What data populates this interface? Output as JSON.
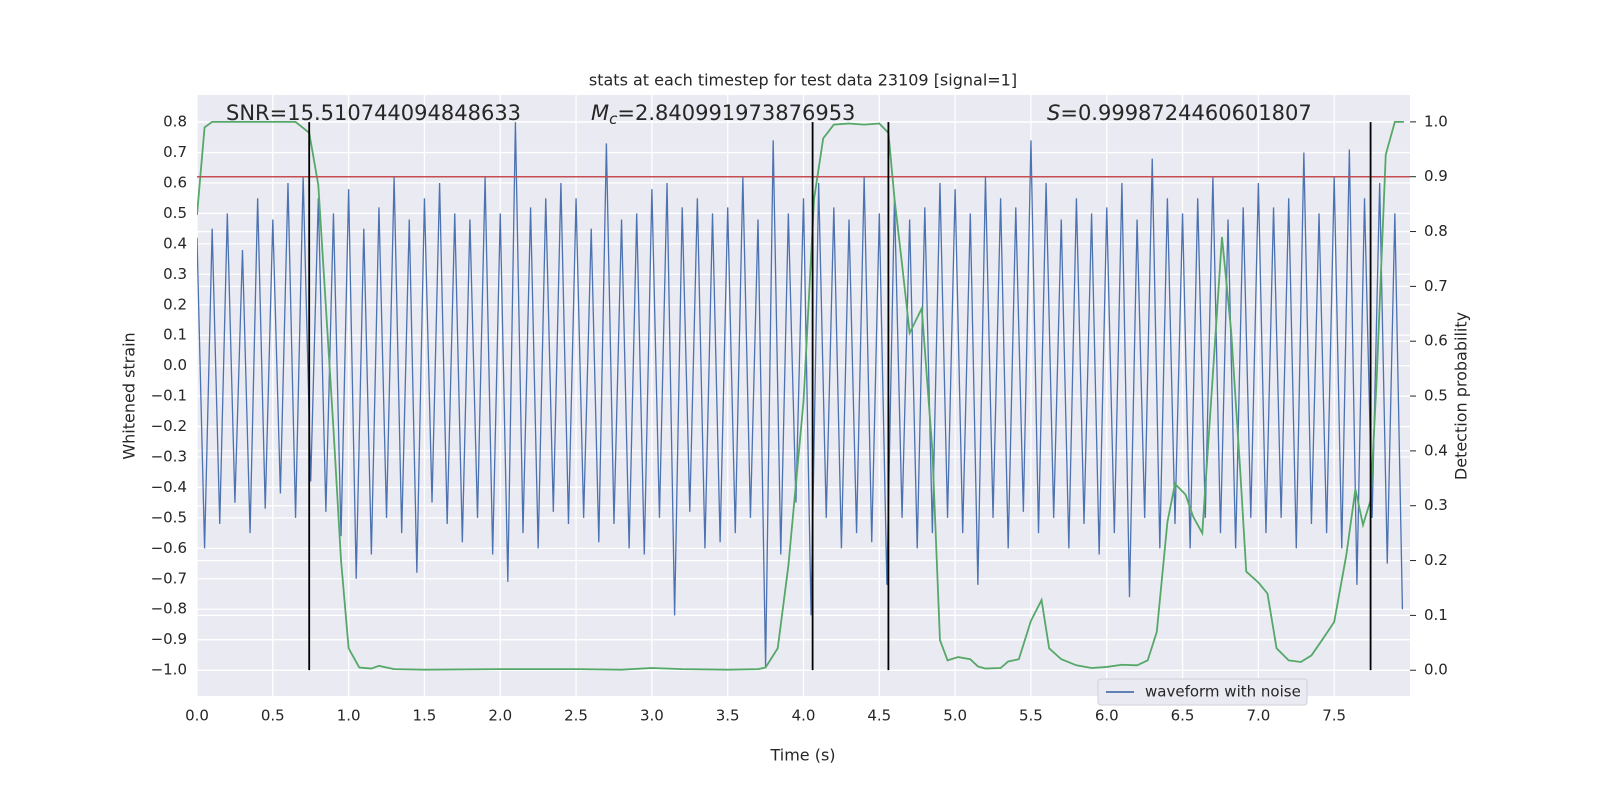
{
  "chart_data": {
    "type": "line",
    "title": "stats at each timestep for test data 23109 [signal=1]",
    "xlabel": "Time (s)",
    "ylabel": "Whitened strain",
    "y2label": "Detection probability",
    "xlim": [
      0,
      8.0
    ],
    "ylim": [
      -1.085,
      0.889
    ],
    "y2lim": [
      -0.047,
      1.049
    ],
    "xticks": [
      {
        "value": 0,
        "label": "0.0"
      },
      0.5,
      {
        "value": 1,
        "label": "1.0"
      },
      1.5,
      {
        "value": 2,
        "label": "2.0"
      },
      2.5,
      {
        "value": 3,
        "label": "3.0"
      },
      3.5,
      {
        "value": 4,
        "label": "4.0"
      },
      4.5,
      {
        "value": 5,
        "label": "5.0"
      },
      5.5,
      {
        "value": 6,
        "label": "6.0"
      },
      6.5,
      {
        "value": 7,
        "label": "7.0"
      },
      7.5
    ],
    "yticks": [
      {
        "value": -1.0,
        "label": "−1.0"
      },
      {
        "value": -0.9,
        "label": "−0.9"
      },
      {
        "value": -0.8,
        "label": "−0.8"
      },
      {
        "value": -0.7,
        "label": "−0.7"
      },
      {
        "value": -0.6,
        "label": "−0.6"
      },
      {
        "value": -0.5,
        "label": "−0.5"
      },
      {
        "value": -0.4,
        "label": "−0.4"
      },
      {
        "value": -0.3,
        "label": "−0.3"
      },
      {
        "value": -0.2,
        "label": "−0.2"
      },
      {
        "value": -0.1,
        "label": "−0.1"
      },
      {
        "value": 0,
        "label": "0.0"
      },
      0.1,
      0.2,
      0.3,
      0.4,
      0.5,
      0.6,
      0.7,
      0.8
    ],
    "y2ticks": [
      {
        "value": 0,
        "label": "0.0"
      },
      0.1,
      0.2,
      0.3,
      0.4,
      0.5,
      0.6,
      0.7,
      0.8,
      0.9,
      {
        "value": 1,
        "label": "1.0"
      }
    ],
    "grid": true,
    "y2grid": true,
    "legend": "lower right",
    "annotations": [
      {
        "text": "SNR=15.510744094848633"
      },
      {
        "symbol": "M",
        "subscript": "c",
        "text": "=2.840991973876953"
      },
      {
        "symbol": "S",
        "text": "=0.9998724460601807"
      }
    ],
    "vlines": {
      "x": [
        0.74,
        4.06,
        4.56,
        7.74
      ],
      "ymin": -1.0,
      "ymax": 0.8,
      "color": "#000000"
    },
    "hline": {
      "axis": "y2",
      "value": 0.9,
      "color": "#c44e52"
    },
    "series": [
      {
        "name": "waveform with noise",
        "color": "#4c72b0",
        "axis": "y",
        "x": [
          0,
          0.05,
          0.1,
          0.15,
          0.2,
          0.25,
          0.3,
          0.35,
          0.4,
          0.45,
          0.5,
          0.55,
          0.6,
          0.65,
          0.7,
          0.75,
          0.8,
          0.85,
          0.9,
          0.95,
          1,
          1.05,
          1.1,
          1.15,
          1.2,
          1.25,
          1.3,
          1.35,
          1.4,
          1.45,
          1.5,
          1.55,
          1.6,
          1.65,
          1.7,
          1.75,
          1.8,
          1.85,
          1.9,
          1.95,
          2,
          2.05,
          2.1,
          2.15,
          2.2,
          2.25,
          2.3,
          2.35,
          2.4,
          2.45,
          2.5,
          2.55,
          2.6,
          2.65,
          2.7,
          2.75,
          2.8,
          2.85,
          2.9,
          2.95,
          3,
          3.05,
          3.1,
          3.15,
          3.2,
          3.25,
          3.3,
          3.35,
          3.4,
          3.45,
          3.5,
          3.55,
          3.6,
          3.65,
          3.7,
          3.75,
          3.8,
          3.85,
          3.9,
          3.95,
          4,
          4.05,
          4.1,
          4.15,
          4.2,
          4.25,
          4.3,
          4.35,
          4.4,
          4.45,
          4.5,
          4.55,
          4.6,
          4.65,
          4.7,
          4.75,
          4.8,
          4.85,
          4.9,
          4.95,
          5,
          5.05,
          5.1,
          5.15,
          5.2,
          5.25,
          5.3,
          5.35,
          5.4,
          5.45,
          5.5,
          5.55,
          5.6,
          5.65,
          5.7,
          5.75,
          5.8,
          5.85,
          5.9,
          5.95,
          6,
          6.05,
          6.1,
          6.15,
          6.2,
          6.25,
          6.3,
          6.35,
          6.4,
          6.45,
          6.5,
          6.55,
          6.6,
          6.65,
          6.7,
          6.75,
          6.8,
          6.85,
          6.9,
          6.95,
          7,
          7.05,
          7.1,
          7.15,
          7.2,
          7.25,
          7.3,
          7.35,
          7.4,
          7.45,
          7.5,
          7.55,
          7.6,
          7.65,
          7.7,
          7.75,
          7.8,
          7.85,
          7.9,
          7.95
        ],
        "values": [
          0.42,
          -0.6,
          0.45,
          -0.52,
          0.5,
          -0.45,
          0.38,
          -0.55,
          0.55,
          -0.47,
          0.48,
          -0.42,
          0.6,
          -0.5,
          0.62,
          -0.38,
          0.55,
          -0.48,
          0.5,
          -0.56,
          0.58,
          -0.7,
          0.45,
          -0.62,
          0.52,
          -0.5,
          0.62,
          -0.55,
          0.48,
          -0.68,
          0.55,
          -0.45,
          0.6,
          -0.52,
          0.5,
          -0.58,
          0.48,
          -0.5,
          0.62,
          -0.62,
          0.5,
          -0.71,
          0.8,
          -0.55,
          0.52,
          -0.6,
          0.55,
          -0.48,
          0.6,
          -0.52,
          0.55,
          -0.5,
          0.45,
          -0.58,
          0.73,
          -0.52,
          0.48,
          -0.6,
          0.5,
          -0.62,
          0.58,
          -0.5,
          0.6,
          -0.82,
          0.52,
          -0.48,
          0.55,
          -0.6,
          0.5,
          -0.58,
          0.52,
          -0.55,
          0.62,
          -0.5,
          0.48,
          -0.99,
          0.74,
          -0.62,
          0.5,
          -0.45,
          0.55,
          -0.82,
          0.6,
          -0.5,
          0.52,
          -0.6,
          0.48,
          -0.55,
          0.62,
          -0.58,
          0.5,
          -0.72,
          0.55,
          -0.5,
          0.48,
          -0.6,
          0.52,
          -0.55,
          0.6,
          -0.5,
          0.58,
          -0.55,
          0.5,
          -0.72,
          0.62,
          -0.5,
          0.55,
          -0.6,
          0.52,
          -0.48,
          0.74,
          -0.55,
          0.6,
          -0.5,
          0.48,
          -0.6,
          0.55,
          -0.52,
          0.5,
          -0.62,
          0.52,
          -0.55,
          0.6,
          -0.76,
          0.48,
          -0.5,
          0.68,
          -0.6,
          0.55,
          -0.52,
          0.5,
          -0.6,
          0.55,
          -0.5,
          0.62,
          -0.55,
          0.48,
          -0.6,
          0.52,
          -0.5,
          0.6,
          -0.55,
          0.52,
          -0.5,
          0.55,
          -0.6,
          0.7,
          -0.52,
          0.5,
          -0.55,
          0.62,
          -0.6,
          0.71,
          -0.72,
          0.55,
          -0.5,
          0.6,
          -0.65,
          0.5,
          -0.8
        ]
      },
      {
        "color": "#55a868",
        "axis": "y2",
        "x": [
          0,
          0.05,
          0.1,
          0.2,
          0.3,
          0.4,
          0.5,
          0.6,
          0.65,
          0.74,
          0.8,
          0.9,
          0.95,
          1.0,
          1.07,
          1.15,
          1.2,
          1.3,
          1.5,
          2.0,
          2.5,
          2.8,
          3.0,
          3.2,
          3.5,
          3.7,
          3.75,
          3.83,
          3.9,
          4.0,
          4.07,
          4.13,
          4.2,
          4.3,
          4.4,
          4.5,
          4.56,
          4.6,
          4.65,
          4.7,
          4.78,
          4.85,
          4.9,
          4.95,
          5.02,
          5.1,
          5.15,
          5.2,
          5.3,
          5.35,
          5.42,
          5.5,
          5.57,
          5.62,
          5.7,
          5.8,
          5.9,
          6.0,
          6.1,
          6.2,
          6.27,
          6.33,
          6.4,
          6.45,
          6.52,
          6.57,
          6.63,
          6.7,
          6.76,
          6.82,
          6.88,
          6.92,
          7.0,
          7.06,
          7.12,
          7.2,
          7.28,
          7.35,
          7.42,
          7.5,
          7.58,
          7.64,
          7.69,
          7.74,
          7.78,
          7.84,
          7.9,
          7.96
        ],
        "values": [
          0.83,
          0.99,
          1.0,
          1.0,
          1.0,
          1.0,
          1.0,
          1.0,
          1.0,
          0.98,
          0.885,
          0.44,
          0.2,
          0.04,
          0.005,
          0.003,
          0.008,
          0.002,
          0.001,
          0.002,
          0.002,
          0.001,
          0.004,
          0.002,
          0.001,
          0.002,
          0.005,
          0.04,
          0.19,
          0.49,
          0.86,
          0.97,
          0.995,
          0.997,
          0.995,
          0.997,
          0.98,
          0.86,
          0.74,
          0.615,
          0.66,
          0.4,
          0.055,
          0.018,
          0.024,
          0.02,
          0.007,
          0.003,
          0.004,
          0.016,
          0.02,
          0.09,
          0.128,
          0.04,
          0.02,
          0.009,
          0.004,
          0.006,
          0.01,
          0.009,
          0.018,
          0.07,
          0.27,
          0.34,
          0.32,
          0.28,
          0.25,
          0.54,
          0.79,
          0.62,
          0.365,
          0.18,
          0.16,
          0.14,
          0.04,
          0.018,
          0.015,
          0.027,
          0.055,
          0.088,
          0.21,
          0.33,
          0.265,
          0.31,
          0.53,
          0.94,
          1.0,
          1.0
        ]
      }
    ]
  }
}
